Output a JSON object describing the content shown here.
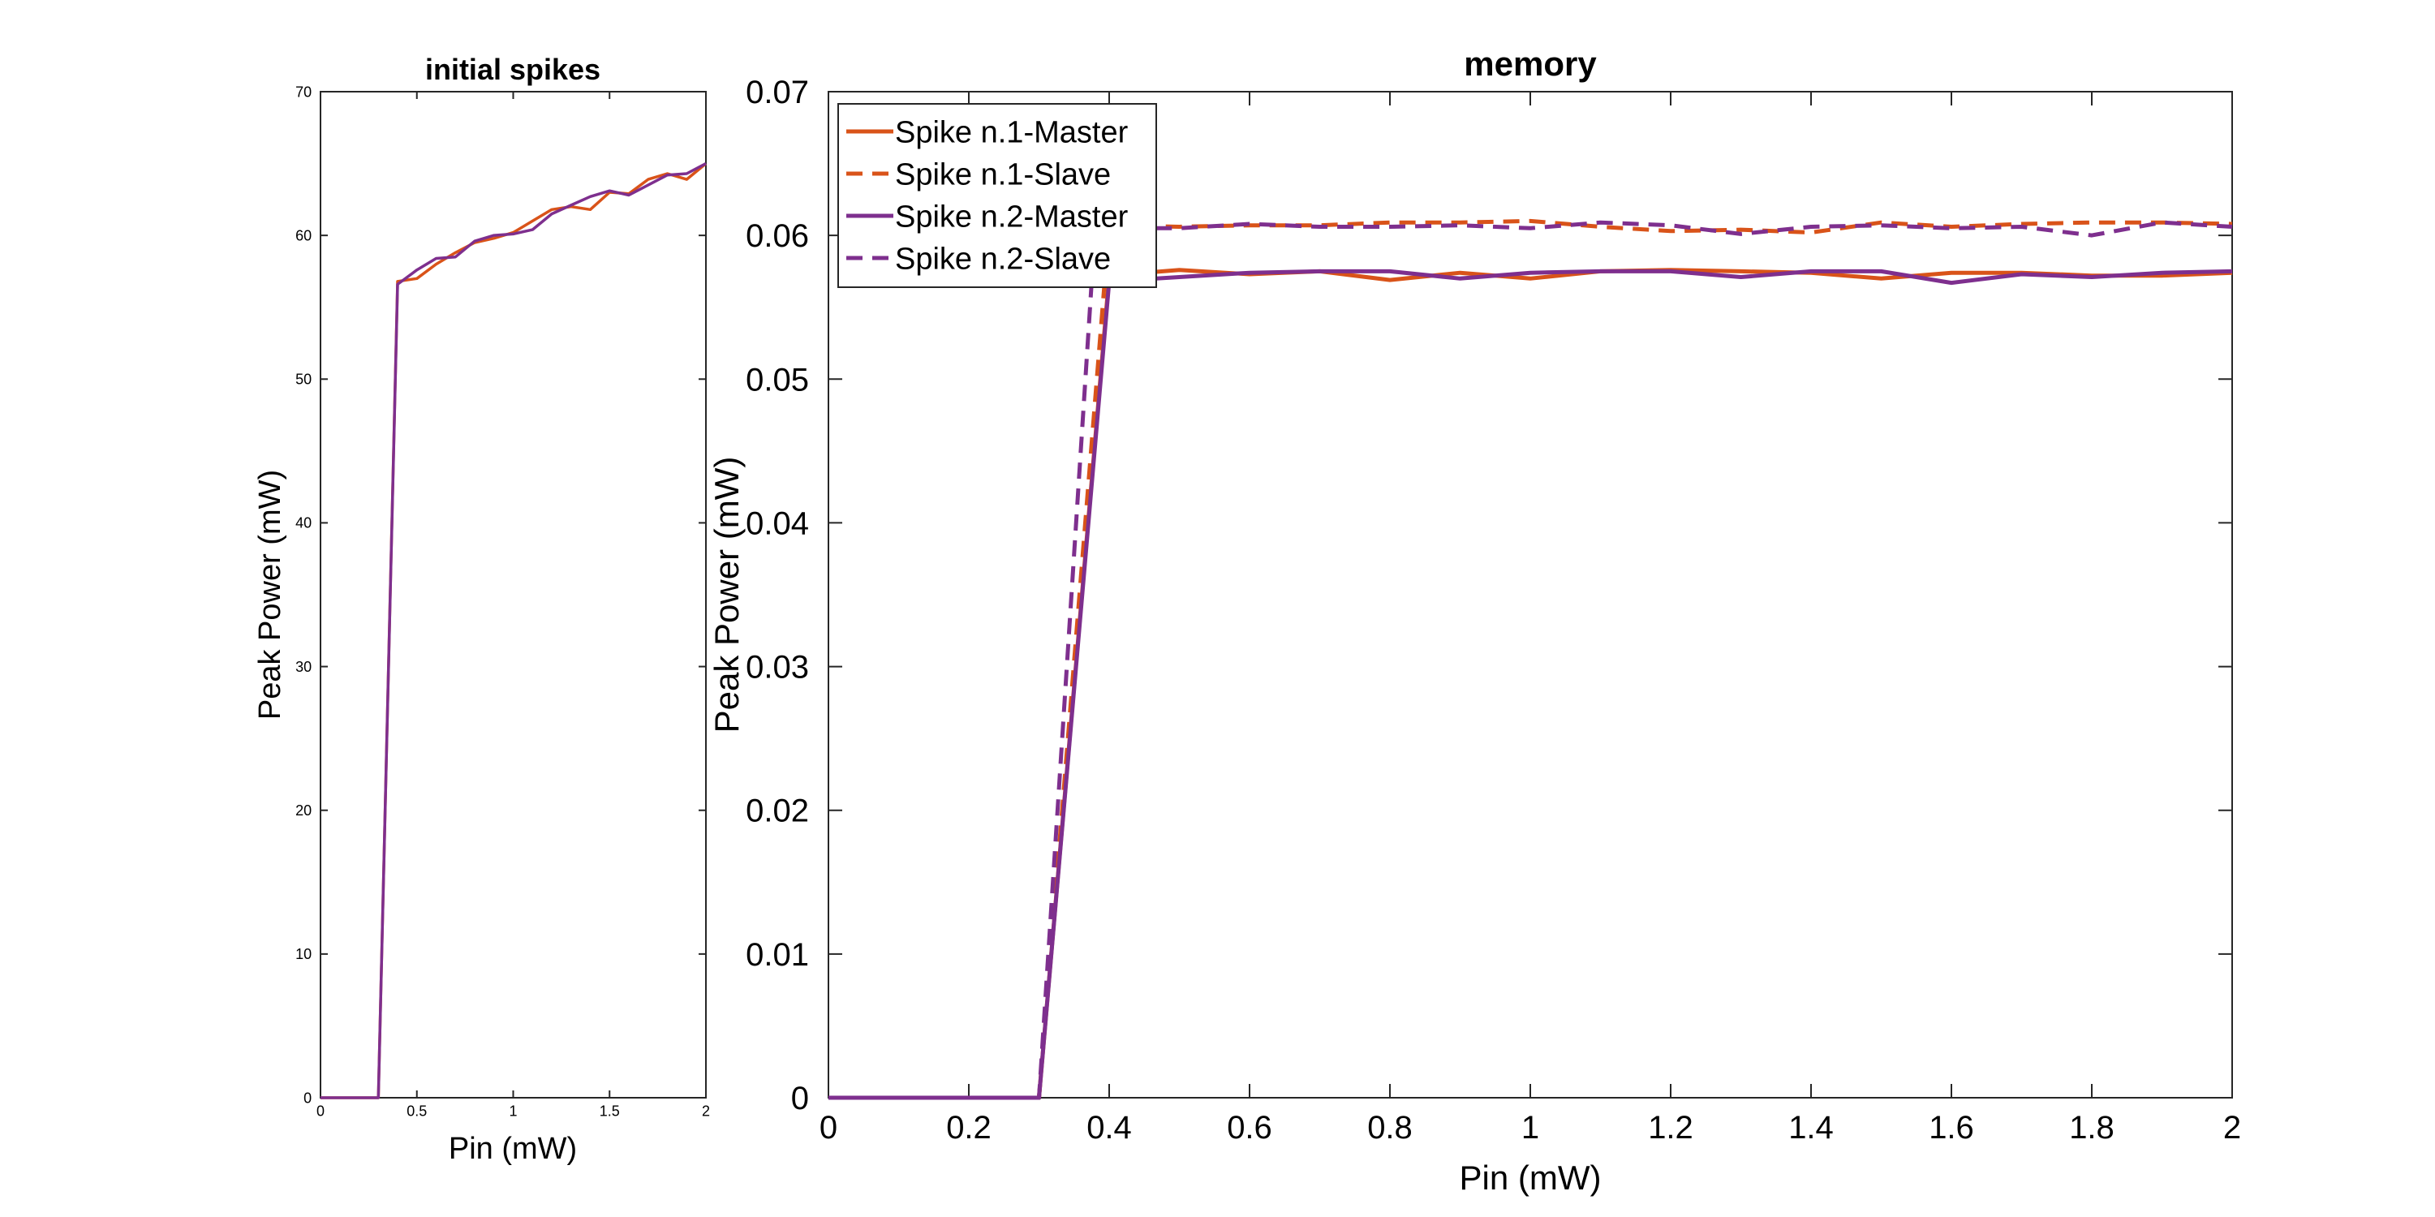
{
  "colors": {
    "orange": "#D95319",
    "purple": "#7E2F8E",
    "axis": "#262626"
  },
  "chart_data": [
    {
      "type": "line",
      "title": "initial spikes",
      "xlabel": "Pin (mW)",
      "ylabel": "Peak Power (mW)",
      "xlim": [
        0,
        2
      ],
      "ylim": [
        0,
        70
      ],
      "xticks": [
        0,
        0.5,
        1,
        1.5,
        2
      ],
      "xtick_labels": [
        "0",
        "0.5",
        "1",
        "1.5",
        "2"
      ],
      "yticks": [
        0,
        10,
        20,
        30,
        40,
        50,
        60,
        70
      ],
      "ytick_labels": [
        "0",
        "10",
        "20",
        "30",
        "40",
        "50",
        "60",
        "70"
      ],
      "grid": false,
      "legend": "none",
      "series": [
        {
          "color": "#D95319",
          "dash": "solid",
          "x": [
            0,
            0.1,
            0.2,
            0.3,
            0.4,
            0.5,
            0.6,
            0.7,
            0.8,
            0.9,
            1.0,
            1.1,
            1.2,
            1.3,
            1.4,
            1.5,
            1.6,
            1.7,
            1.8,
            1.9,
            2.0
          ],
          "y": [
            0,
            0,
            0,
            0,
            56.8,
            57.0,
            58.0,
            58.8,
            59.5,
            59.8,
            60.2,
            61.0,
            61.8,
            62.0,
            61.8,
            63.0,
            62.9,
            63.9,
            64.3,
            63.9,
            65.0
          ]
        },
        {
          "color": "#7E2F8E",
          "dash": "solid",
          "x": [
            0,
            0.1,
            0.2,
            0.3,
            0.4,
            0.5,
            0.6,
            0.7,
            0.8,
            0.9,
            1.0,
            1.1,
            1.2,
            1.3,
            1.4,
            1.5,
            1.6,
            1.7,
            1.8,
            1.9,
            2.0
          ],
          "y": [
            0,
            0,
            0,
            0,
            56.6,
            57.6,
            58.4,
            58.5,
            59.6,
            60.0,
            60.1,
            60.4,
            61.5,
            62.1,
            62.7,
            63.1,
            62.8,
            63.5,
            64.2,
            64.3,
            65.0
          ]
        }
      ]
    },
    {
      "type": "line",
      "title": "memory",
      "xlabel": "Pin (mW)",
      "ylabel": "Peak Power (mW)",
      "xlim": [
        0,
        2
      ],
      "ylim": [
        0,
        0.07
      ],
      "xticks": [
        0,
        0.2,
        0.4,
        0.6,
        0.8,
        1,
        1.2,
        1.4,
        1.6,
        1.8,
        2
      ],
      "xtick_labels": [
        "0",
        "0.2",
        "0.4",
        "0.6",
        "0.8",
        "1",
        "1.2",
        "1.4",
        "1.6",
        "1.8",
        "2"
      ],
      "yticks": [
        0,
        0.01,
        0.02,
        0.03,
        0.04,
        0.05,
        0.06,
        0.07
      ],
      "ytick_labels": [
        "0",
        "0.01",
        "0.02",
        "0.03",
        "0.04",
        "0.05",
        "0.06",
        "0.07"
      ],
      "grid": false,
      "legend": "top-left",
      "series": [
        {
          "name": "Spike n.1-Master",
          "color": "#D95319",
          "dash": "solid",
          "x": [
            0,
            0.1,
            0.2,
            0.3,
            0.4,
            0.5,
            0.6,
            0.7,
            0.8,
            0.9,
            1.0,
            1.1,
            1.2,
            1.3,
            1.4,
            1.5,
            1.6,
            1.7,
            1.8,
            1.9,
            2.0
          ],
          "y": [
            0,
            0,
            0,
            0,
            0.0572,
            0.0576,
            0.0573,
            0.0575,
            0.0569,
            0.0574,
            0.057,
            0.0575,
            0.0576,
            0.0575,
            0.0574,
            0.057,
            0.0574,
            0.0574,
            0.0572,
            0.0572,
            0.0574
          ]
        },
        {
          "name": "Spike n.1-Slave",
          "color": "#D95319",
          "dash": "dashed",
          "x": [
            0,
            0.1,
            0.2,
            0.3,
            0.4,
            0.5,
            0.6,
            0.7,
            0.8,
            0.9,
            1.0,
            1.1,
            1.2,
            1.3,
            1.4,
            1.5,
            1.6,
            1.7,
            1.8,
            1.9,
            2.0
          ],
          "y": [
            0,
            0,
            0,
            0,
            0.0607,
            0.0606,
            0.0607,
            0.0607,
            0.0609,
            0.0609,
            0.061,
            0.0606,
            0.0603,
            0.0604,
            0.0602,
            0.0609,
            0.0606,
            0.0608,
            0.0609,
            0.0609,
            0.0608
          ]
        },
        {
          "name": "Spike n.2-Master",
          "color": "#7E2F8E",
          "dash": "solid",
          "x": [
            0,
            0.1,
            0.2,
            0.3,
            0.4,
            0.5,
            0.6,
            0.7,
            0.8,
            0.9,
            1.0,
            1.1,
            1.2,
            1.3,
            1.4,
            1.5,
            1.6,
            1.7,
            1.8,
            1.9,
            2.0
          ],
          "y": [
            0,
            0,
            0,
            0,
            0.0568,
            0.0571,
            0.0574,
            0.0575,
            0.0575,
            0.057,
            0.0574,
            0.0575,
            0.0575,
            0.0571,
            0.0575,
            0.0575,
            0.0567,
            0.0573,
            0.0571,
            0.0574,
            0.0575
          ]
        },
        {
          "name": "Spike n.2-Slave",
          "color": "#7E2F8E",
          "dash": "dashed",
          "x": [
            0,
            0.1,
            0.2,
            0.3,
            0.38,
            0.4,
            0.5,
            0.6,
            0.7,
            0.8,
            0.9,
            1.0,
            1.1,
            1.2,
            1.3,
            1.4,
            1.5,
            1.6,
            1.7,
            1.8,
            1.9,
            2.0
          ],
          "y": [
            0,
            0,
            0,
            0,
            0.0605,
            0.0605,
            0.0605,
            0.0608,
            0.0606,
            0.0606,
            0.0607,
            0.0605,
            0.0609,
            0.0607,
            0.0601,
            0.0606,
            0.0607,
            0.0605,
            0.0606,
            0.06,
            0.0609,
            0.0606
          ]
        }
      ]
    }
  ]
}
